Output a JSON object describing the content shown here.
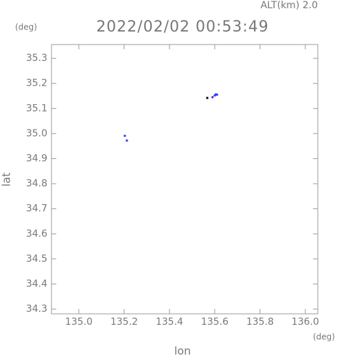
{
  "chart_data": {
    "type": "scatter",
    "title": "2022/02/02 00:53:49",
    "subtitle": "ALT(km) 2.0",
    "y_unit": "(deg)",
    "x_unit": "(deg)",
    "xlabel": "lon",
    "ylabel": "lat",
    "x": [
      135.203,
      135.212,
      135.59,
      135.6,
      135.605,
      135.61,
      135.567
    ],
    "y": [
      34.991,
      34.972,
      35.145,
      35.152,
      35.156,
      35.155,
      35.142
    ],
    "colors": [
      "#3333ff",
      "#3333ff",
      "#3333ff",
      "#3333ff",
      "#3333ff",
      "#3333ff",
      "#000000"
    ],
    "xlim": [
      134.879,
      136.055
    ],
    "ylim": [
      34.281,
      35.355
    ],
    "xticks": [
      {
        "value": 135.0,
        "label": "135.0"
      },
      135.2,
      135.4,
      135.6,
      135.8,
      {
        "value": 136.0,
        "label": "136.0"
      }
    ],
    "yticks": [
      34.3,
      34.4,
      34.5,
      34.6,
      34.7,
      34.8,
      34.9,
      {
        "value": 35.0,
        "label": "35.0"
      },
      35.1,
      35.2,
      35.3
    ]
  }
}
